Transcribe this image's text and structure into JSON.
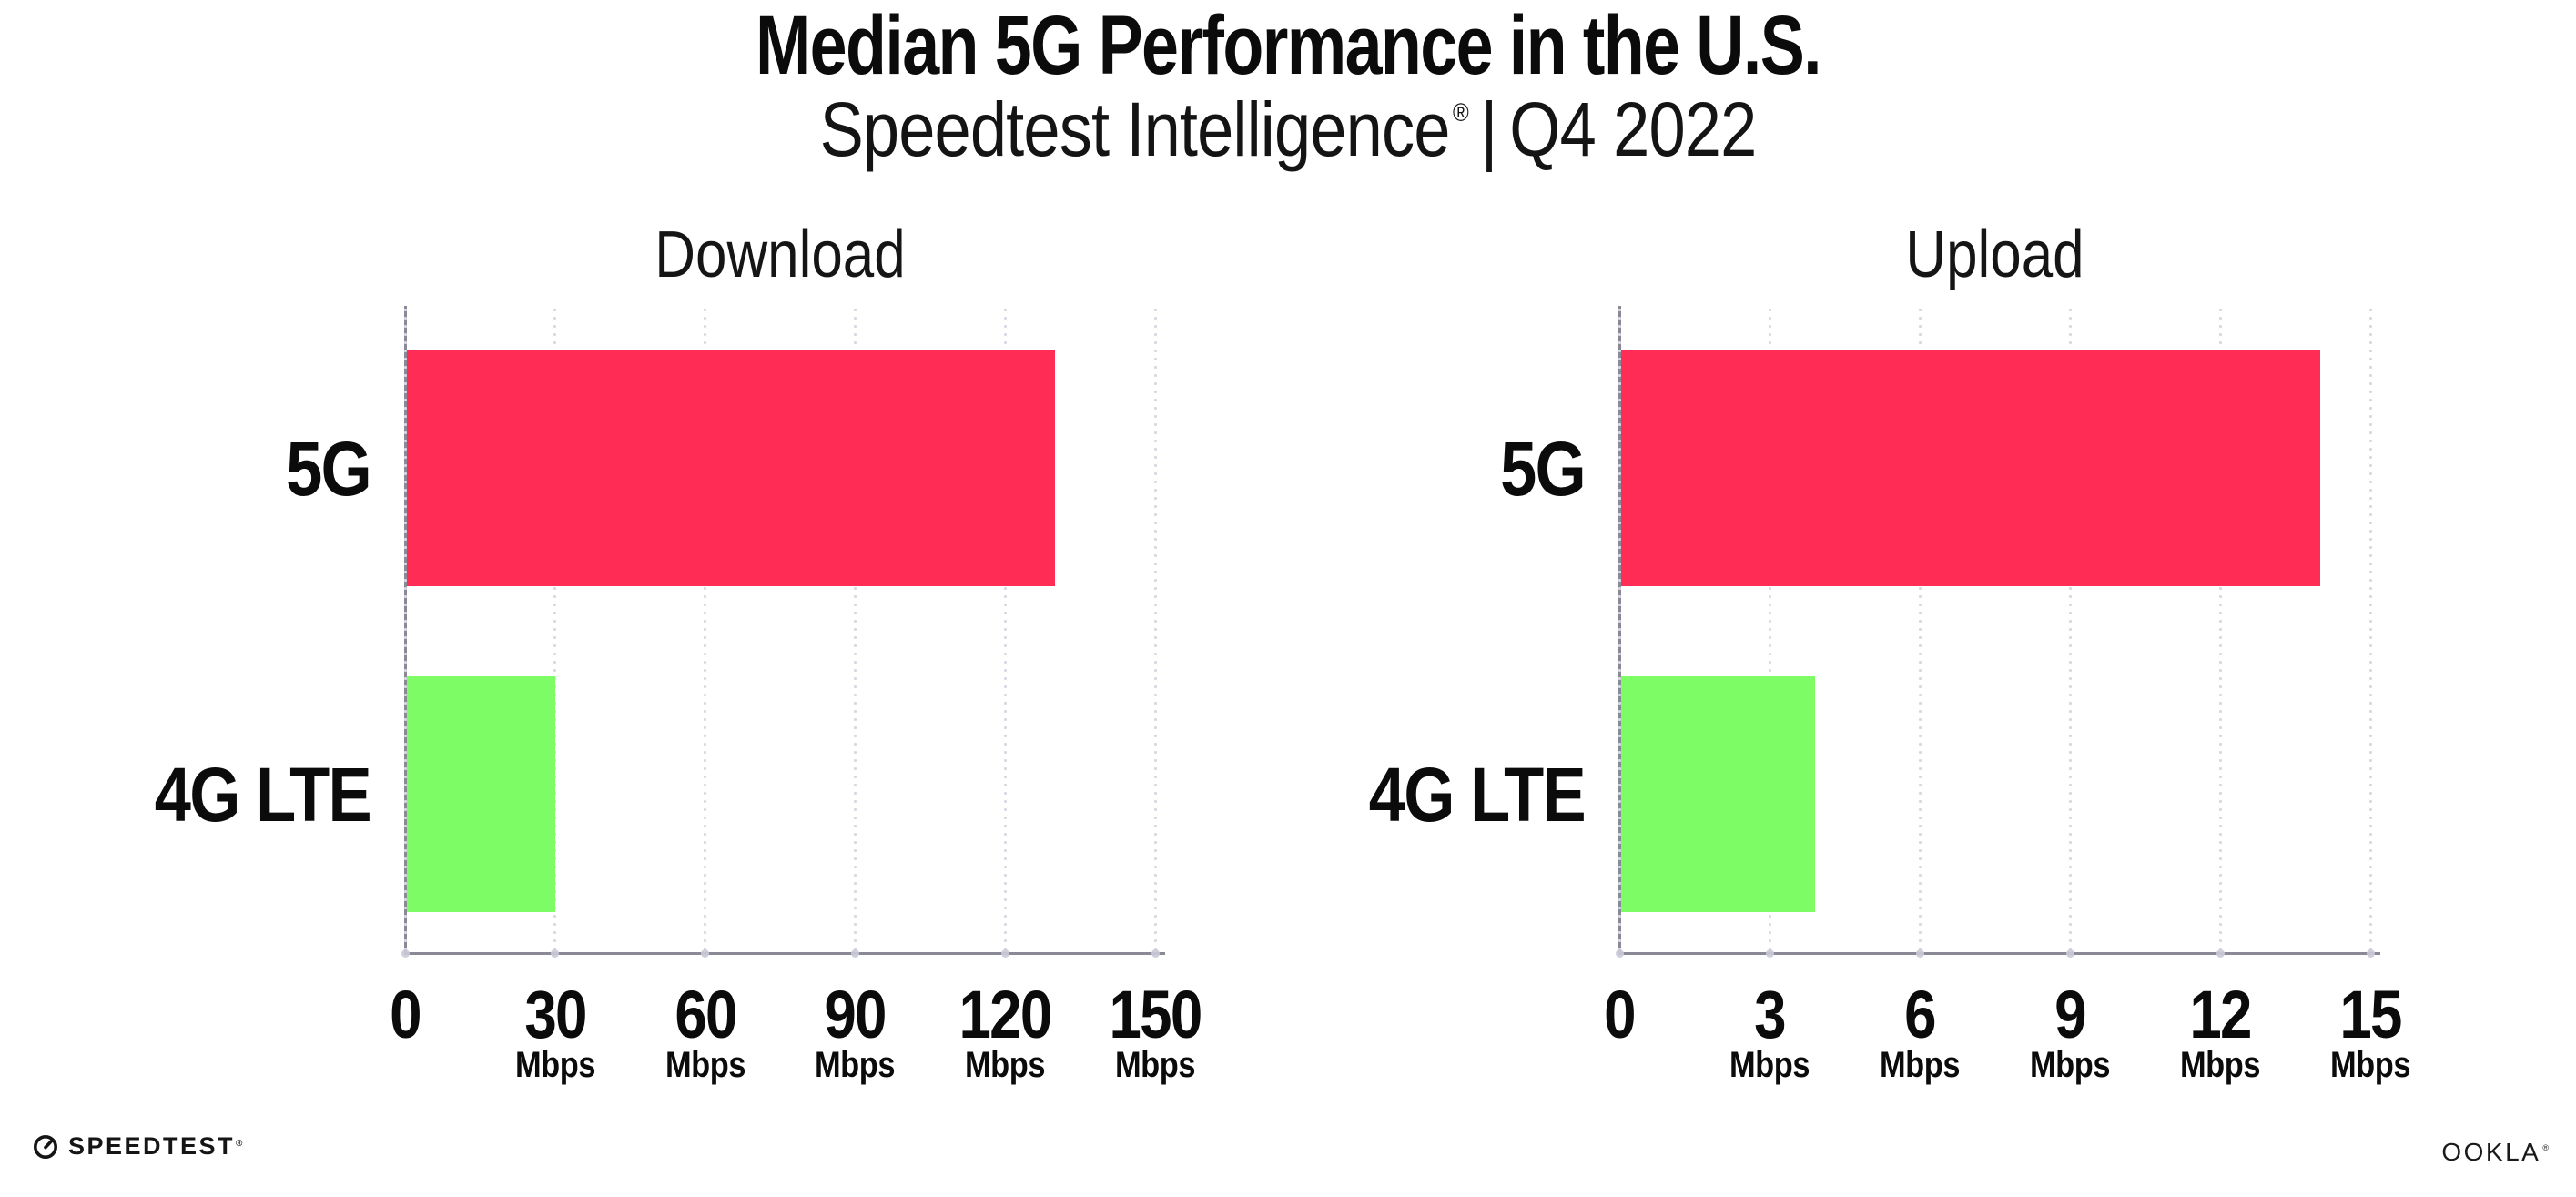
{
  "header": {
    "title": "Median 5G Performance in the U.S.",
    "subtitle_brand": "Speedtest Intelligence",
    "subtitle_reg": "®",
    "subtitle_separator": "|",
    "subtitle_period": "Q4 2022"
  },
  "footer": {
    "speedtest_label": "SPEEDTEST",
    "speedtest_reg": "®",
    "ookla_label": "OOKLA",
    "ookla_reg": "®"
  },
  "colors": {
    "bar_5g": "#FF2D55",
    "bar_4g_lte": "#7DFC66",
    "axis_line": "#8A8A96",
    "grid_dot": "#D8D8E3",
    "axis_tick_dot": "#C9C9D6",
    "text": "#0B0B0B"
  },
  "icons": {
    "speedtest_gauge": "gauge-icon"
  },
  "chart_data": [
    {
      "type": "bar",
      "orientation": "horizontal",
      "title": "Download",
      "categories": [
        "5G",
        "4G LTE"
      ],
      "values": [
        130,
        30
      ],
      "unit": "Mbps",
      "xlim": [
        0,
        150
      ],
      "xticks": [
        0,
        30,
        60,
        90,
        120,
        150
      ],
      "xtick_unit": "Mbps",
      "bar_colors": [
        "#FF2D55",
        "#7DFC66"
      ],
      "grid": "dotted-vertical",
      "legend": "none"
    },
    {
      "type": "bar",
      "orientation": "horizontal",
      "title": "Upload",
      "categories": [
        "5G",
        "4G LTE"
      ],
      "values": [
        14,
        3.9
      ],
      "unit": "Mbps",
      "xlim": [
        0,
        15
      ],
      "xticks": [
        0,
        3,
        6,
        9,
        12,
        15
      ],
      "xtick_unit": "Mbps",
      "bar_colors": [
        "#FF2D55",
        "#7DFC66"
      ],
      "grid": "dotted-vertical",
      "legend": "none"
    }
  ]
}
